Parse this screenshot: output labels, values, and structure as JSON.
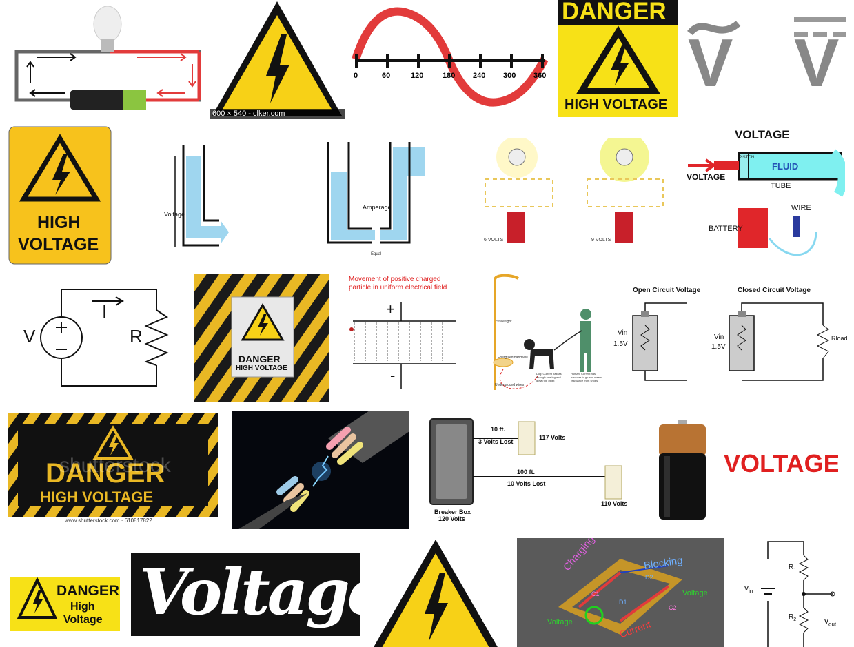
{
  "results": {
    "t1": {
      "label": "circuit with bulb and battery"
    },
    "t2": {
      "caption": "600 × 540 - clker.com"
    },
    "t3": {
      "ticks": [
        "0",
        "60",
        "120",
        "180",
        "240",
        "300",
        "360"
      ]
    },
    "t4": {
      "top": "DANGER",
      "bottom": "HIGH VOLTAGE"
    },
    "t5": {
      "v1": "V",
      "v2": "V"
    },
    "t6": {
      "l1": "HIGH",
      "l2": "VOLTAGE"
    },
    "t7": {
      "label": "Voltage"
    },
    "t8": {
      "label": "Amperage",
      "sub": "Equal"
    },
    "t9": {
      "a": "6 VOLTS",
      "b": "9 VOLTS"
    },
    "t10": {
      "title": "VOLTAGE",
      "fluid": "FLUID",
      "piston": "PISTON",
      "tube": "TUBE",
      "voltage": "VOLTAGE",
      "battery": "BATTERY",
      "wire": "WIRE"
    },
    "t11": {
      "v": "V",
      "i": "I",
      "r": "R"
    },
    "t12": {
      "l1": "DANGER",
      "l2": "HIGH VOLTAGE"
    },
    "t13": {
      "title1": "Movement of positive charged",
      "title2": "particle in uniform electrical field",
      "plus": "+",
      "minus": "-"
    },
    "t14": {
      "streetlight": "Streetlight",
      "energized": "Energized handwell",
      "underground": "Underground wires",
      "dog": "Dog: Current passes through one leg and down the other.",
      "human": "Human: Current has nowhere to go and meets resistance from shoes."
    },
    "t15": {
      "open": "Open Circuit Voltage",
      "closed": "Closed Circuit Voltage",
      "vin": "Vin",
      "v15": "1.5V",
      "rload": "Rload"
    },
    "t16": {
      "l1": "DANGER",
      "l2": "HIGH VOLTAGE",
      "wm": "shutterstock",
      "credit": "www.shutterstock.com · 610817822"
    },
    "t17": {
      "label": "glowing cable wires"
    },
    "t18": {
      "ft10": "10 ft.",
      "lost3": "3 Volts Lost",
      "v117": "117 Volts",
      "ft100": "100 ft.",
      "lost10": "10 Volts Lost",
      "v110": "110 Volts",
      "breaker": "Breaker Box",
      "v120": "120 Volts"
    },
    "t19": {
      "label": "battery"
    },
    "t20": {
      "word": "VOLTAGE"
    },
    "t21": {
      "l1": "DANGER",
      "l2": "High",
      "l3": "Voltage"
    },
    "t22": {
      "word": "Voltage"
    },
    "t23": {
      "label": "warning triangle"
    },
    "t24": {
      "charging": "Charging",
      "blocking": "Blocking",
      "voltage1": "Voltage",
      "voltage2": "Voltage",
      "current": "Current",
      "d1": "D1",
      "d2": "D2",
      "c1": "C1",
      "c2": "C2"
    },
    "t25": {
      "vin": "v",
      "vin_sub": "in",
      "r1": "R",
      "r1_sub": "1",
      "r2": "R",
      "r2_sub": "2",
      "vout": "v",
      "vout_sub": "out"
    }
  },
  "colors": {
    "yellow": "#f7d117",
    "black": "#111111",
    "red": "#e02020"
  }
}
